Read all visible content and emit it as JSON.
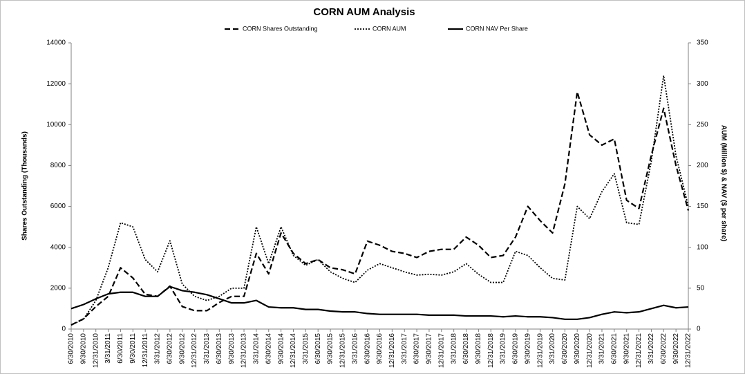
{
  "chart_data": {
    "type": "line",
    "title": "CORN AUM Analysis",
    "y_label": "Shares Outstanding (Thousands)",
    "y2_label": "AUM (Million $) & NAV ($ per share)",
    "categories": [
      "6/30/2010",
      "9/30/2010",
      "12/31/2010",
      "3/31/2011",
      "6/30/2011",
      "9/30/2011",
      "12/31/2011",
      "3/31/2012",
      "6/30/2012",
      "9/30/2012",
      "12/31/2012",
      "3/31/2013",
      "6/30/2013",
      "9/30/2013",
      "12/31/2013",
      "3/31/2014",
      "6/30/2014",
      "9/30/2014",
      "12/31/2014",
      "3/31/2015",
      "6/30/2015",
      "9/30/2015",
      "12/31/2015",
      "3/31/2016",
      "6/30/2016",
      "9/30/2016",
      "12/31/2016",
      "3/31/2017",
      "6/30/2017",
      "9/30/2017",
      "12/31/2017",
      "3/31/2018",
      "6/30/2018",
      "9/30/2018",
      "12/31/2018",
      "3/31/2019",
      "6/30/2019",
      "9/30/2019",
      "12/31/2019",
      "3/31/2020",
      "6/30/2020",
      "9/30/2020",
      "12/31/2020",
      "3/31/2021",
      "6/30/2021",
      "9/30/2021",
      "12/31/2021",
      "3/31/2022",
      "6/30/2022",
      "9/30/2022",
      "12/31/2022"
    ],
    "series": [
      {
        "name": "CORN Shares Outstanding",
        "color": "#000000",
        "dash": "dashed",
        "axis": "y",
        "values": [
          200,
          500,
          1100,
          1600,
          3000,
          2500,
          1700,
          1600,
          2100,
          1100,
          900,
          900,
          1300,
          1600,
          1600,
          3700,
          2700,
          4700,
          3700,
          3200,
          3400,
          3000,
          2900,
          2700,
          4300,
          4100,
          3800,
          3700,
          3500,
          3800,
          3900,
          3900,
          4500,
          4100,
          3500,
          3600,
          4500,
          6000,
          5300,
          4700,
          7100,
          11600,
          9500,
          9000,
          9300,
          6300,
          5900,
          8500,
          10800,
          8000,
          5800
        ]
      },
      {
        "name": "CORN AUM",
        "color": "#000000",
        "dash": "dotted",
        "axis": "y2",
        "values": [
          5,
          12,
          35,
          75,
          130,
          125,
          85,
          70,
          108,
          55,
          40,
          35,
          40,
          50,
          50,
          125,
          80,
          125,
          90,
          78,
          85,
          70,
          62,
          57,
          72,
          80,
          75,
          70,
          66,
          67,
          66,
          70,
          80,
          67,
          57,
          57,
          95,
          90,
          75,
          62,
          60,
          150,
          135,
          168,
          190,
          130,
          128,
          205,
          310,
          212,
          150
        ]
      },
      {
        "name": "CORN NAV Per Share",
        "color": "#000000",
        "dash": "solid",
        "axis": "y2",
        "values": [
          25,
          30,
          37,
          43,
          45,
          45,
          40,
          40,
          52,
          47,
          45,
          42,
          37,
          32,
          32,
          35,
          27,
          26,
          26,
          24,
          24,
          22,
          21,
          21,
          19,
          18,
          18,
          18,
          18,
          17,
          17,
          17,
          16,
          16,
          16,
          15,
          16,
          15,
          15,
          14,
          12,
          12,
          14,
          18,
          21,
          20,
          21,
          25,
          29,
          26,
          27
        ]
      }
    ],
    "ylim": [
      0,
      14000
    ],
    "yticks": [
      0,
      2000,
      4000,
      6000,
      8000,
      10000,
      12000,
      14000
    ],
    "y2lim": [
      0,
      350
    ],
    "y2ticks": [
      0,
      50,
      100,
      150,
      200,
      250,
      300,
      350
    ],
    "grid": false,
    "legend": "top"
  }
}
